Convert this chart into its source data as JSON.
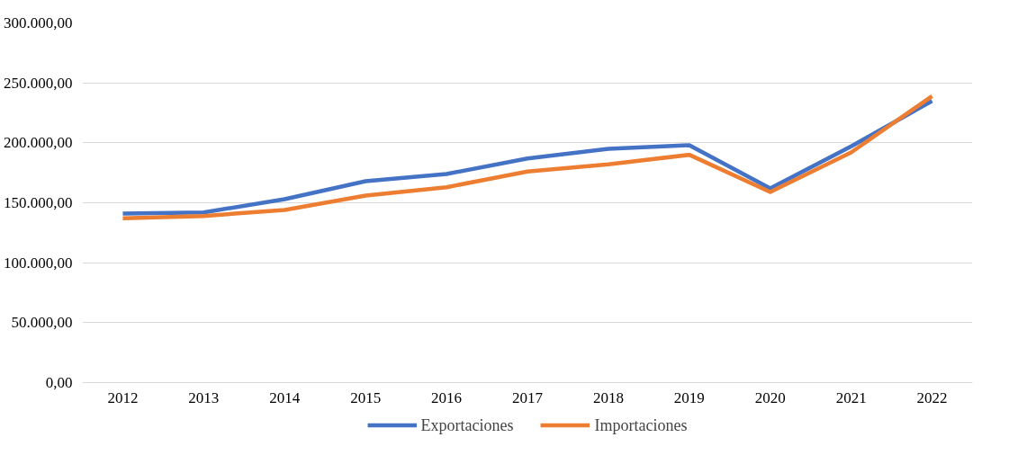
{
  "chart_data": {
    "type": "line",
    "categories": [
      "2012",
      "2013",
      "2014",
      "2015",
      "2016",
      "2017",
      "2018",
      "2019",
      "2020",
      "2021",
      "2022"
    ],
    "series": [
      {
        "name": "Exportaciones",
        "color": "#4472c4",
        "values": [
          141000,
          142000,
          153000,
          168000,
          174000,
          187000,
          195000,
          198000,
          162000,
          197000,
          235000
        ]
      },
      {
        "name": "Importaciones",
        "color": "#ed7d31",
        "values": [
          137000,
          139000,
          144000,
          156000,
          163000,
          176000,
          182000,
          190000,
          159000,
          192000,
          239000
        ]
      }
    ],
    "ylim": [
      0,
      300000
    ],
    "yticks": [
      {
        "value": 0,
        "label": "0,00"
      },
      {
        "value": 50000,
        "label": "50.000,00"
      },
      {
        "value": 100000,
        "label": "100.000,00"
      },
      {
        "value": 150000,
        "label": "150.000,00"
      },
      {
        "value": 200000,
        "label": "200.000,00"
      },
      {
        "value": 250000,
        "label": "250.000,00"
      },
      {
        "value": 300000,
        "label": "300.000,00"
      }
    ],
    "grid": "y",
    "legend": "bottom",
    "marker": "none",
    "line_style": "solid"
  }
}
